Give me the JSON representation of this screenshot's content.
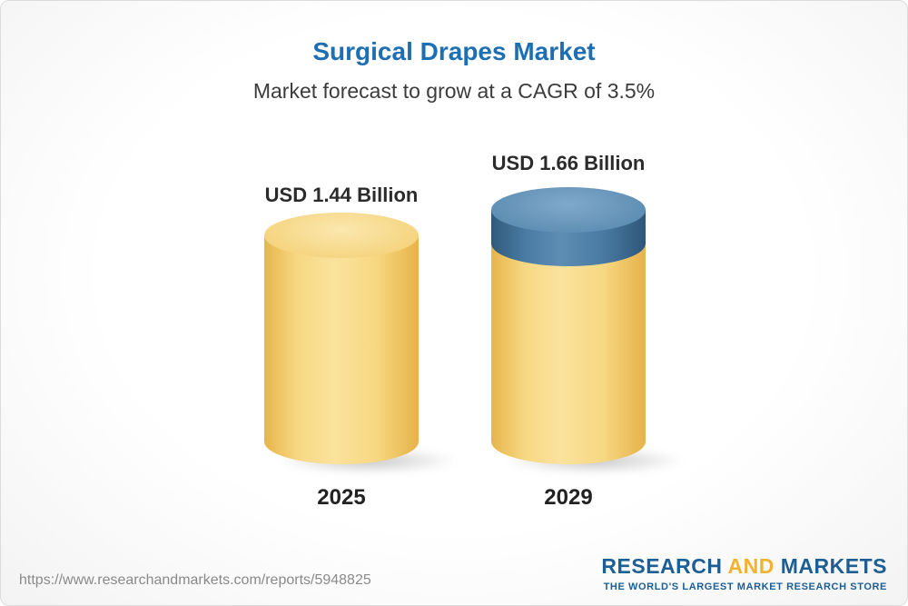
{
  "chart": {
    "title": "Surgical Drapes Market",
    "subtitle": "Market forecast to grow at a CAGR of 3.5%"
  },
  "chart_data": {
    "type": "bar",
    "title": "Surgical Drapes Market",
    "subtitle": "Market forecast to grow at a CAGR of 3.5%",
    "categories": [
      "2025",
      "2029"
    ],
    "values": [
      1.44,
      1.66
    ],
    "value_labels": [
      "USD 1.44 Billion",
      "USD 1.66 Billion"
    ],
    "unit": "USD Billion",
    "cagr_percent": 3.5,
    "legend_position": "none",
    "grid": false,
    "colors": {
      "bar_fill": "#f3cf79",
      "growth_cap_fill": "#5d8db3",
      "title_text": "#1e6fb2",
      "label_text": "#2b2b2b"
    }
  },
  "footer": {
    "url": "https://www.researchandmarkets.com/reports/5948825",
    "logo": {
      "research": "RESEARCH",
      "and": "AND",
      "markets": "MARKETS",
      "tagline": "THE WORLD'S LARGEST MARKET RESEARCH STORE"
    }
  }
}
